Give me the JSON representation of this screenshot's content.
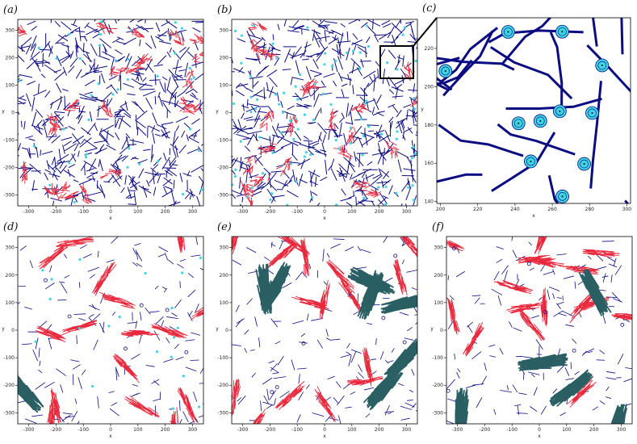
{
  "chart_data": [
    {
      "type": "scatter",
      "label": "(a)",
      "x_label": "x",
      "y_label": "y",
      "xlim": [
        -340,
        340
      ],
      "ylim": [
        -340,
        340
      ],
      "xticks": [
        -300,
        -200,
        -100,
        0,
        100,
        200,
        300
      ],
      "yticks": [
        -300,
        -200,
        -100,
        0,
        100,
        200,
        300
      ]
    },
    {
      "type": "scatter",
      "label": "(b)",
      "x_label": "x",
      "y_label": "y",
      "xlim": [
        -340,
        340
      ],
      "ylim": [
        -340,
        340
      ],
      "xticks": [
        -300,
        -200,
        -100,
        0,
        100,
        200,
        300
      ],
      "yticks": [
        -300,
        -200,
        -100,
        0,
        100,
        200,
        300
      ]
    },
    {
      "type": "scatter",
      "label": "(c)",
      "x_label": "x",
      "y_label": "y",
      "xlim": [
        198,
        302
      ],
      "ylim": [
        139,
        236
      ],
      "xticks": [
        200,
        220,
        240,
        260,
        280,
        300
      ],
      "yticks": [
        140,
        160,
        180,
        200,
        220
      ]
    },
    {
      "type": "scatter",
      "label": "(d)",
      "x_label": "x",
      "y_label": "y",
      "xlim": [
        -340,
        340
      ],
      "ylim": [
        -340,
        340
      ],
      "xticks": [
        -300,
        -200,
        -100,
        0,
        100,
        200,
        300
      ],
      "yticks": [
        -300,
        -200,
        -100,
        0,
        100,
        200,
        300
      ]
    },
    {
      "type": "scatter",
      "label": "(e)",
      "x_label": "x",
      "y_label": "y",
      "xlim": [
        -340,
        340
      ],
      "ylim": [
        -340,
        340
      ],
      "xticks": [
        -300,
        -200,
        -100,
        0,
        100,
        200,
        300
      ],
      "yticks": [
        -300,
        -200,
        -100,
        0,
        100,
        200,
        300
      ]
    },
    {
      "type": "scatter",
      "label": "(f)",
      "x_label": "x",
      "y_label": "y",
      "xlim": [
        -340,
        340
      ],
      "ylim": [
        -340,
        340
      ],
      "xticks": [
        -300,
        -200,
        -100,
        0,
        100,
        200,
        300
      ],
      "yticks": [
        -300,
        -200,
        -100,
        0,
        100,
        200,
        300
      ]
    }
  ]
}
